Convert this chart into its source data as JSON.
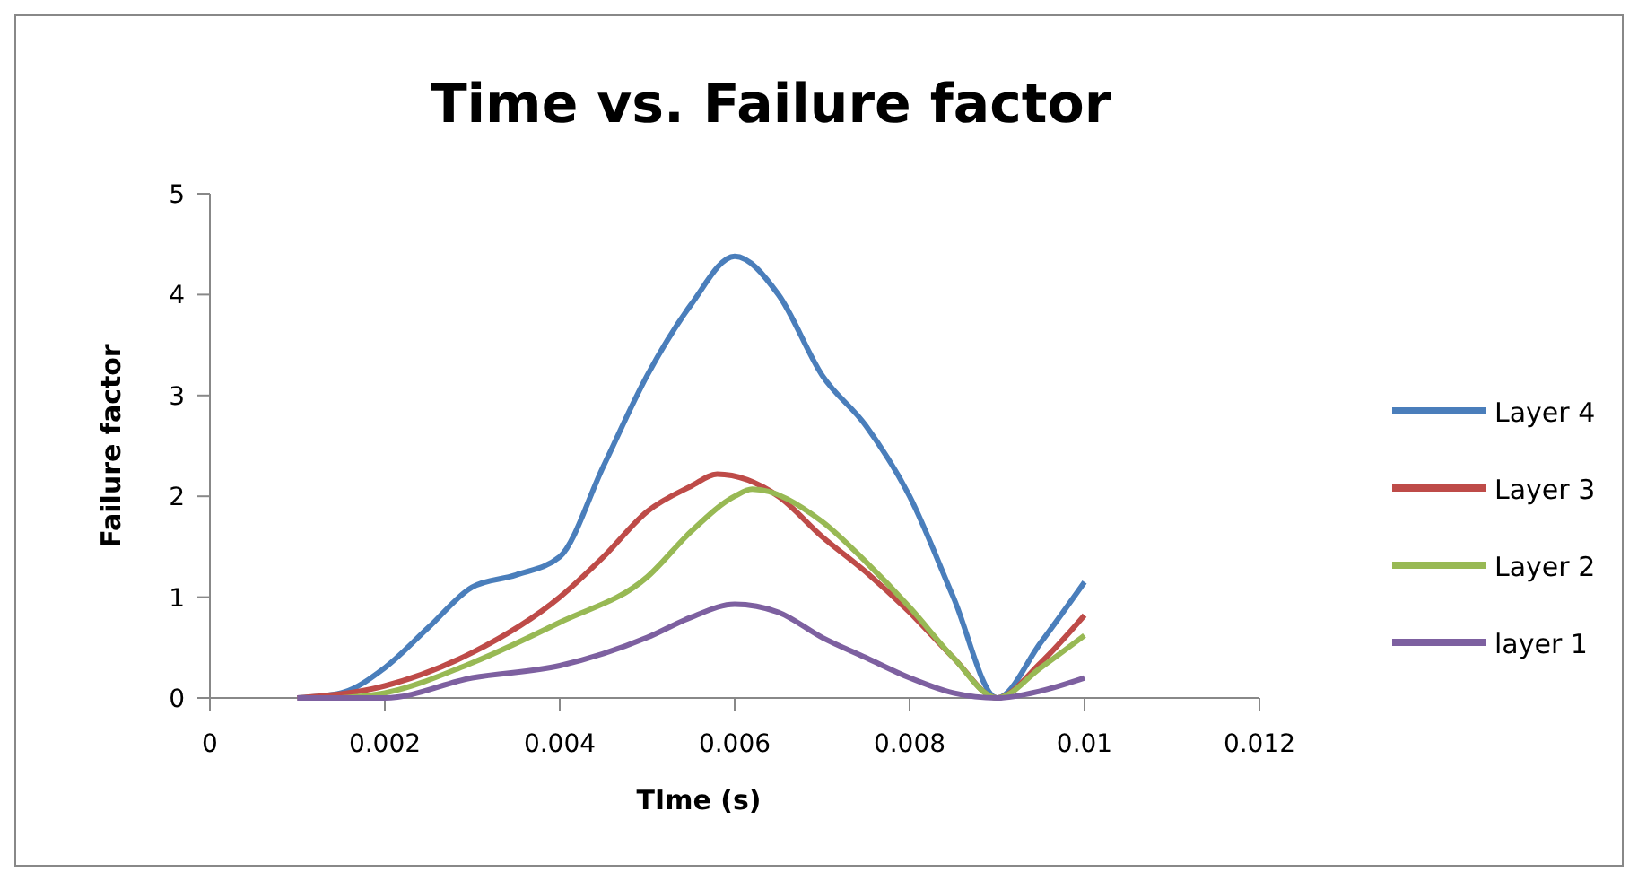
{
  "chart_data": {
    "type": "line",
    "title": "Time vs. Failure factor",
    "xlabel": "TIme (s)",
    "ylabel": "Failure factor",
    "xlim": [
      0,
      0.012
    ],
    "xticks": [
      0,
      0.002,
      0.004,
      0.006,
      0.008,
      0.01,
      0.012
    ],
    "ylim": [
      0,
      5
    ],
    "yticks": [
      0,
      1,
      2,
      3,
      4,
      5
    ],
    "grid": false,
    "legend": "right",
    "marker": "none",
    "line_style": "solid",
    "series": [
      {
        "name": "Layer 4",
        "color": "#4a7ebb",
        "x": [
          0.001,
          0.0015,
          0.002,
          0.0025,
          0.003,
          0.0035,
          0.004,
          0.0045,
          0.005,
          0.0055,
          0.006,
          0.0065,
          0.007,
          0.0075,
          0.008,
          0.0085,
          0.009,
          0.0095,
          0.01
        ],
        "values": [
          0,
          0.05,
          0.3,
          0.7,
          1.1,
          1.22,
          1.4,
          2.3,
          3.2,
          3.9,
          4.38,
          4,
          3.2,
          2.7,
          2,
          1,
          0,
          0.55,
          1.15
        ]
      },
      {
        "name": "Layer 3",
        "color": "#be4b48",
        "x": [
          0.001,
          0.002,
          0.003,
          0.004,
          0.0045,
          0.005,
          0.0055,
          0.0058,
          0.0065,
          0.007,
          0.0075,
          0.008,
          0.0085,
          0.009,
          0.0095,
          0.01
        ],
        "values": [
          0,
          0.12,
          0.45,
          1,
          1.4,
          1.85,
          2.1,
          2.22,
          2,
          1.6,
          1.25,
          0.85,
          0.4,
          0,
          0.35,
          0.82
        ]
      },
      {
        "name": "Layer 2",
        "color": "#98b954",
        "x": [
          0.0015,
          0.002,
          0.003,
          0.004,
          0.005,
          0.0055,
          0.006,
          0.0062,
          0.007,
          0.0075,
          0.008,
          0.0085,
          0.009,
          0.0095,
          0.01
        ],
        "values": [
          0,
          0.05,
          0.35,
          0.75,
          1.2,
          1.65,
          2,
          2.07,
          1.75,
          1.35,
          0.9,
          0.4,
          0,
          0.3,
          0.62
        ]
      },
      {
        "name": "layer 1",
        "color": "#7d60a0",
        "x": [
          0.001,
          0.002,
          0.003,
          0.004,
          0.005,
          0.0055,
          0.006,
          0.0065,
          0.007,
          0.0075,
          0.008,
          0.0085,
          0.009,
          0.0095,
          0.01
        ],
        "values": [
          0,
          0,
          0.2,
          0.32,
          0.6,
          0.8,
          0.93,
          0.85,
          0.6,
          0.4,
          0.2,
          0.05,
          0,
          0.07,
          0.2
        ]
      }
    ]
  }
}
